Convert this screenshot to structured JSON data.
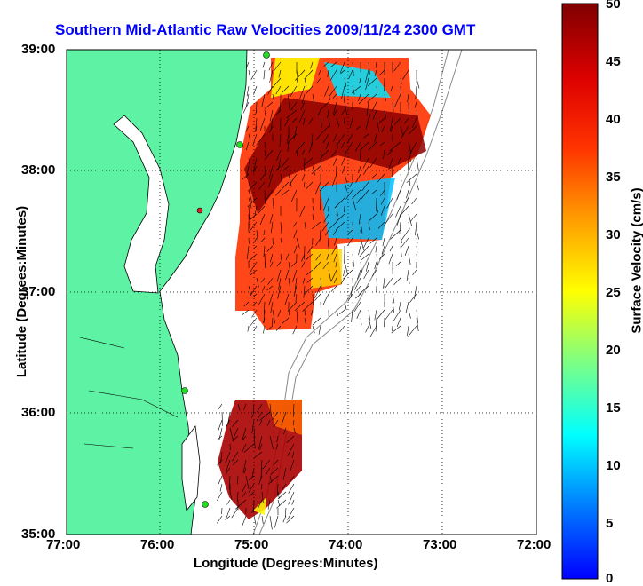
{
  "title": "Southern Mid-Atlantic Raw Velocities 2009/11/24 2300 GMT",
  "xlabel": "Longitude (Degrees:Minutes)",
  "ylabel": "Latitude (Degrees:Minutes)",
  "colorbar_label": "Surface Velocity (cm/s)",
  "x_ticks": [
    "77:00",
    "76:00",
    "75:00",
    "74:00",
    "73:00",
    "72:00"
  ],
  "y_ticks": [
    "39:00",
    "38:00",
    "37:00",
    "36:00",
    "35:00"
  ],
  "colorbar_ticks": [
    "50",
    "45",
    "40",
    "35",
    "30",
    "25",
    "20",
    "15",
    "10",
    "5",
    "0"
  ],
  "colors": {
    "title": "#0000ff",
    "land": "#5df2a4",
    "sites": "#22dd22"
  },
  "map": {
    "lon_range": [
      -77,
      -72
    ],
    "lat_range": [
      35,
      39
    ],
    "colorbar_range": [
      0,
      50
    ],
    "grid": "dotted"
  }
}
